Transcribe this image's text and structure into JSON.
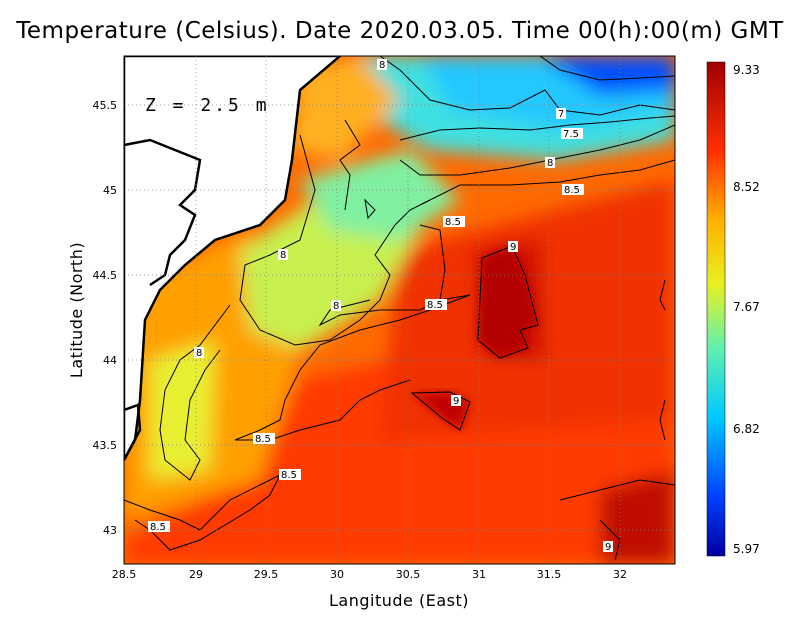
{
  "title": "Temperature (Celsius). Date 2020.03.05. Time 00(h):00(m) GMT",
  "depth_label": "Z = 2.5 m",
  "x_axis": {
    "label": "Langitude (East)",
    "ticks": [
      "28.5",
      "29",
      "29.5",
      "30",
      "30.5",
      "31",
      "31.5",
      "32"
    ]
  },
  "y_axis": {
    "label": "Latitude (North)",
    "ticks": [
      "45.5",
      "45",
      "44.5",
      "44",
      "43.5",
      "43"
    ]
  },
  "colorbar": {
    "ticks": [
      "9.33",
      "8.52",
      "7.67",
      "6.82",
      "5.97"
    ]
  },
  "contour_labels": [
    "8",
    "7",
    "7.5",
    "8",
    "8.5",
    "8.5",
    "9",
    "8",
    "8",
    "8.5",
    "8",
    "9",
    "8.5",
    "8.5",
    "8.5",
    "9"
  ]
}
